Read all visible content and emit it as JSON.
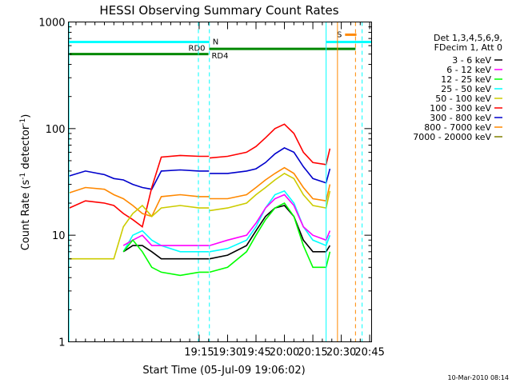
{
  "chart_data": {
    "type": "line",
    "title": "HESSI Observing Summary Count Rates",
    "xlabel": "Start Time (05-Jul-09 19:06:02)",
    "ylabel_main": "Count Rate (s",
    "ylabel_sup1": "-1",
    "ylabel_mid": " detector",
    "ylabel_sup2": "-1",
    "ylabel_end": ")",
    "y_scale": "log",
    "ylim": [
      1,
      1000
    ],
    "xlim_min": [
      1086.0,
      1246.0
    ],
    "y_ticks": [
      {
        "value": 1,
        "label": "1"
      },
      {
        "value": 10,
        "label": "10"
      },
      {
        "value": 100,
        "label": "100"
      },
      {
        "value": 1000,
        "label": "1000"
      }
    ],
    "x_ticks": [
      {
        "value": 1155,
        "label": "19:15"
      },
      {
        "value": 1170,
        "label": "19:30"
      },
      {
        "value": 1185,
        "label": "19:45"
      },
      {
        "value": 1200,
        "label": "20:00"
      },
      {
        "value": 1215,
        "label": "20:15"
      },
      {
        "value": 1230,
        "label": "20:30"
      },
      {
        "value": 1245,
        "label": "20:45"
      }
    ],
    "legend": {
      "header": [
        "Det 1,3,4,5,6,9,",
        "FDecim 1, Att 0"
      ],
      "entries": [
        {
          "label": "3 - 6 keV",
          "color": "#000000"
        },
        {
          "label": "6 - 12 keV",
          "color": "#ff00ff"
        },
        {
          "label": "12 - 25 keV",
          "color": "#00ff00"
        },
        {
          "label": "25 - 50 keV",
          "color": "#00ffff"
        },
        {
          "label": "50 - 100 keV",
          "color": "#cccc00"
        },
        {
          "label": "100 - 300 keV",
          "color": "#ff0000"
        },
        {
          "label": "300 - 800 keV",
          "color": "#0000cc"
        },
        {
          "label": "800 - 7000 keV",
          "color": "#ff8800"
        },
        {
          "label": "7000 - 20000 keV",
          "color": "#808000"
        }
      ]
    },
    "flag_bars": [
      {
        "label": "N",
        "color": "#00ffff",
        "y": 650,
        "segments": [
          [
            1086.0,
            1160.4
          ],
          [
            1222.0,
            1246.0
          ]
        ]
      },
      {
        "label": "RD0",
        "color": "#008800",
        "y": 500,
        "segments": [
          [
            1086.0,
            1159.9
          ]
        ]
      },
      {
        "label": "RD4",
        "color": "#008800",
        "y": 560,
        "segments": [
          [
            1160.3,
            1237.5
          ]
        ]
      },
      {
        "label": "S",
        "color": "#ff8800",
        "y": 760,
        "segments": [
          [
            1232.0,
            1238.0
          ]
        ]
      }
    ],
    "vlines": [
      {
        "x": 1086.3,
        "color": "#00ffff",
        "dash": false
      },
      {
        "x": 1154.6,
        "color": "#00ffff",
        "dash": true
      },
      {
        "x": 1160.4,
        "color": "#00ffff",
        "dash": true
      },
      {
        "x": 1222.0,
        "color": "#00ffff",
        "dash": false
      },
      {
        "x": 1228.0,
        "color": "#ff8800",
        "dash": false
      },
      {
        "x": 1237.5,
        "color": "#ff8800",
        "dash": true
      },
      {
        "x": 1241.0,
        "color": "#00ffff",
        "dash": true
      }
    ],
    "segments": [
      [
        1086.5,
        1160.2
      ],
      [
        1160.5,
        1224.0
      ]
    ],
    "series": [
      {
        "name": "300 - 800 keV",
        "color": "#0000cc",
        "x": [
          1086.5,
          1095,
          1105,
          1110,
          1115,
          1120,
          1125,
          1130,
          1135,
          1145,
          1155,
          1160.2,
          1160.5,
          1170,
          1180,
          1185,
          1190,
          1195,
          1200,
          1205,
          1210,
          1215,
          1222,
          1224
        ],
        "y": [
          36,
          40,
          37,
          34,
          33,
          30,
          28,
          27,
          40,
          41,
          40,
          40,
          38,
          38,
          40,
          42,
          48,
          58,
          66,
          60,
          44,
          34,
          31,
          42
        ]
      },
      {
        "name": "100 - 300 keV",
        "color": "#ff0000",
        "x": [
          1086.5,
          1095,
          1105,
          1110,
          1115,
          1120,
          1125,
          1130,
          1135,
          1145,
          1155,
          1160.2,
          1160.5,
          1170,
          1180,
          1185,
          1190,
          1195,
          1200,
          1205,
          1210,
          1215,
          1222,
          1224
        ],
        "y": [
          18,
          21,
          20,
          19,
          16,
          14,
          12,
          28,
          54,
          56,
          55,
          55,
          53,
          55,
          60,
          68,
          82,
          100,
          110,
          90,
          60,
          48,
          46,
          65
        ]
      },
      {
        "name": "800 - 7000 keV",
        "color": "#ff8800",
        "x": [
          1086.5,
          1095,
          1105,
          1110,
          1115,
          1120,
          1125,
          1130,
          1135,
          1145,
          1155,
          1160.2,
          1160.5,
          1170,
          1180,
          1185,
          1190,
          1195,
          1200,
          1205,
          1210,
          1215,
          1222,
          1224
        ],
        "y": [
          25,
          28,
          27,
          24,
          22,
          19,
          16,
          15,
          23,
          24,
          23,
          23,
          22,
          22,
          24,
          28,
          33,
          38,
          43,
          38,
          28,
          22,
          21,
          30
        ]
      },
      {
        "name": "50 - 100 keV",
        "color": "#cccc00",
        "x": [
          1086.5,
          1095,
          1105,
          1110,
          1115,
          1120,
          1125,
          1130,
          1135,
          1145,
          1155,
          1160.2,
          1160.5,
          1170,
          1180,
          1185,
          1190,
          1195,
          1200,
          1205,
          1210,
          1215,
          1222,
          1224
        ],
        "y": [
          6,
          6,
          6,
          6,
          12,
          16,
          19,
          15,
          18,
          19,
          18,
          18,
          17,
          18,
          20,
          24,
          28,
          33,
          38,
          34,
          24,
          19,
          18,
          26
        ]
      },
      {
        "name": "25 - 50 keV",
        "color": "#00ffff",
        "x": [
          1086.5,
          1095,
          1105,
          1110,
          1115,
          1120,
          1125,
          1130,
          1135,
          1145,
          1155,
          1160.2,
          1160.5,
          1170,
          1180,
          1185,
          1190,
          1195,
          1200,
          1205,
          1210,
          1215,
          1222,
          1224
        ],
        "y": [
          null,
          null,
          null,
          null,
          7,
          10,
          11,
          9,
          8,
          7,
          7,
          7,
          7,
          7.5,
          9,
          12,
          18,
          24,
          26,
          20,
          12,
          9,
          8,
          10
        ]
      },
      {
        "name": "6 - 12 keV",
        "color": "#ff00ff",
        "x": [
          1086.5,
          1095,
          1105,
          1110,
          1115,
          1120,
          1125,
          1130,
          1135,
          1145,
          1155,
          1160.2,
          1160.5,
          1170,
          1180,
          1185,
          1190,
          1195,
          1200,
          1205,
          1210,
          1215,
          1222,
          1224
        ],
        "y": [
          null,
          null,
          null,
          null,
          8,
          9,
          10,
          8,
          8,
          8,
          8,
          8,
          8,
          9,
          10,
          13,
          18,
          22,
          24,
          19,
          12,
          10,
          9,
          11
        ]
      },
      {
        "name": "3 - 6 keV",
        "color": "#000000",
        "x": [
          1086.5,
          1095,
          1105,
          1110,
          1115,
          1120,
          1125,
          1130,
          1135,
          1145,
          1155,
          1160.2,
          1160.5,
          1170,
          1180,
          1185,
          1190,
          1195,
          1200,
          1205,
          1210,
          1215,
          1222,
          1224
        ],
        "y": [
          null,
          null,
          null,
          null,
          7,
          8,
          8,
          7,
          6,
          6,
          6,
          6,
          6,
          6.5,
          8,
          11,
          15,
          18,
          19,
          15,
          9,
          7,
          7,
          8
        ]
      },
      {
        "name": "12 - 25 keV",
        "color": "#00ff00",
        "x": [
          1086.5,
          1095,
          1105,
          1110,
          1115,
          1120,
          1125,
          1130,
          1135,
          1145,
          1155,
          1160.2,
          1160.5,
          1170,
          1180,
          1185,
          1190,
          1195,
          1200,
          1205,
          1210,
          1215,
          1222,
          1224
        ],
        "y": [
          null,
          null,
          null,
          null,
          7,
          9,
          7,
          5,
          4.5,
          4.2,
          4.5,
          4.5,
          4.5,
          5,
          7,
          10,
          14,
          18,
          20,
          15,
          8,
          5,
          5,
          7
        ]
      }
    ],
    "timestamp": "10-Mar-2010 08:14"
  }
}
